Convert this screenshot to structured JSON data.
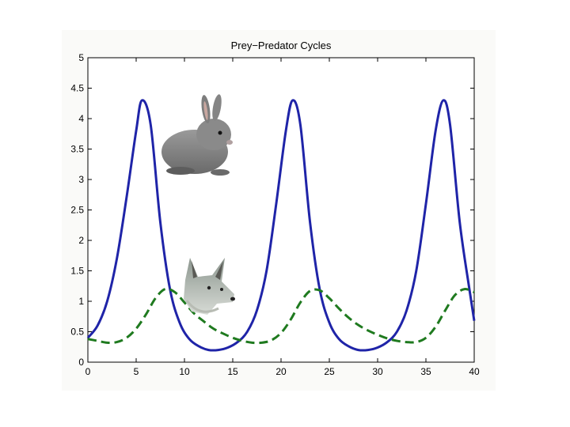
{
  "chart_data": {
    "type": "line",
    "title": "Prey−Predator Cycles",
    "xlabel": "",
    "ylabel": "",
    "xlim": [
      0,
      40
    ],
    "ylim": [
      0,
      5
    ],
    "xticks": [
      "0",
      "5",
      "10",
      "15",
      "20",
      "25",
      "30",
      "35",
      "40"
    ],
    "yticks": [
      "0",
      "0.5",
      "1",
      "1.5",
      "2",
      "2.5",
      "3",
      "3.5",
      "4",
      "4.5",
      "5"
    ],
    "grid": false,
    "legend": "none",
    "series": [
      {
        "color": "#1f24a8",
        "style": "solid",
        "x": [
          0,
          1,
          2,
          3,
          4,
          5,
          5.6,
          6.5,
          7.5,
          8.5,
          9.5,
          10.5,
          11.5,
          12.5,
          13.5,
          14.5,
          15.5,
          16.5,
          17.5,
          18.5,
          19.5,
          20.5,
          21.2,
          22,
          23,
          24,
          25,
          26,
          27,
          28,
          29,
          30,
          31,
          32,
          33,
          34,
          35,
          36,
          36.8,
          37.5,
          38.5,
          39.5,
          40
        ],
        "y": [
          0.4,
          0.6,
          1.0,
          1.7,
          2.7,
          3.8,
          4.3,
          3.9,
          2.3,
          1.2,
          0.65,
          0.38,
          0.26,
          0.2,
          0.2,
          0.24,
          0.33,
          0.5,
          0.85,
          1.5,
          2.6,
          3.8,
          4.3,
          3.9,
          2.3,
          1.2,
          0.65,
          0.38,
          0.26,
          0.2,
          0.2,
          0.24,
          0.33,
          0.5,
          0.85,
          1.5,
          2.6,
          3.8,
          4.3,
          3.9,
          2.3,
          1.2,
          0.68
        ]
      },
      {
        "color": "#1f7a1f",
        "style": "dashed",
        "x": [
          0,
          1,
          2,
          3,
          4,
          5,
          6,
          7,
          8,
          9,
          10,
          11,
          12,
          13,
          14,
          15,
          16,
          17,
          18,
          19,
          20,
          21,
          22,
          23,
          24,
          25,
          26,
          27,
          28,
          29,
          30,
          31,
          32,
          33,
          34,
          35,
          36,
          37,
          38,
          39,
          40
        ],
        "y": [
          0.38,
          0.35,
          0.32,
          0.33,
          0.4,
          0.55,
          0.78,
          1.05,
          1.2,
          1.15,
          0.98,
          0.8,
          0.67,
          0.55,
          0.47,
          0.4,
          0.35,
          0.32,
          0.32,
          0.36,
          0.48,
          0.7,
          0.98,
          1.17,
          1.18,
          1.05,
          0.88,
          0.73,
          0.61,
          0.52,
          0.45,
          0.39,
          0.35,
          0.33,
          0.33,
          0.4,
          0.58,
          0.85,
          1.1,
          1.2,
          1.15
        ]
      }
    ]
  },
  "images": {
    "rabbit": "rabbit-photo",
    "coyote": "coyote-photo"
  }
}
